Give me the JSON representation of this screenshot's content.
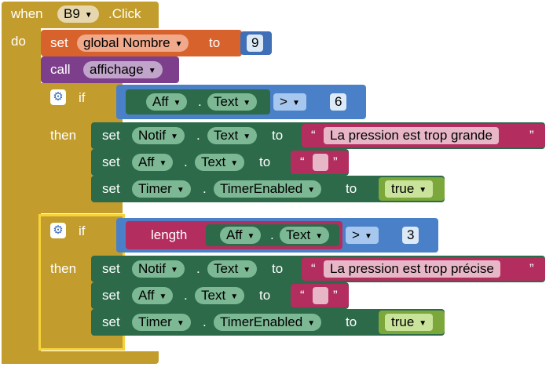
{
  "event": {
    "when": "when",
    "component": "B9",
    "event_name": ".Click",
    "do": "do"
  },
  "set_global": {
    "set": "set",
    "var": "global Nombre",
    "to": "to",
    "value": "9"
  },
  "call": {
    "call": "call",
    "proc": "affichage"
  },
  "if1": {
    "if": "if",
    "lhs_comp": "Aff",
    "dot": ".",
    "lhs_prop": "Text",
    "op": ">",
    "rhs": "6",
    "then": "then",
    "rows": [
      {
        "set": "set",
        "comp": "Notif",
        "prop": "Text",
        "to": "to",
        "value": "La pression est trop grande"
      },
      {
        "set": "set",
        "comp": "Aff",
        "prop": "Text",
        "to": "to",
        "value": ""
      },
      {
        "set": "set",
        "comp": "Timer",
        "prop": "TimerEnabled",
        "to": "to",
        "value": "true"
      }
    ]
  },
  "if2": {
    "if": "if",
    "length": "length",
    "lhs_comp": "Aff",
    "dot": ".",
    "lhs_prop": "Text",
    "op": ">",
    "rhs": "3",
    "then": "then",
    "rows": [
      {
        "set": "set",
        "comp": "Notif",
        "prop": "Text",
        "to": "to",
        "value": "La pression est trop précise"
      },
      {
        "set": "set",
        "comp": "Aff",
        "prop": "Text",
        "to": "to",
        "value": ""
      },
      {
        "set": "set",
        "comp": "Timer",
        "prop": "TimerEnabled",
        "to": "to",
        "value": "true"
      }
    ]
  },
  "quote_open": "“",
  "quote_close": "”",
  "colors": {
    "event": "#c29c2c",
    "variable": "#d8622c",
    "procedure": "#7d3f8c",
    "control": "#3e6fb7",
    "text": "#b32d5e",
    "component": "#2d6a4a",
    "logic": "#7ba73b"
  }
}
